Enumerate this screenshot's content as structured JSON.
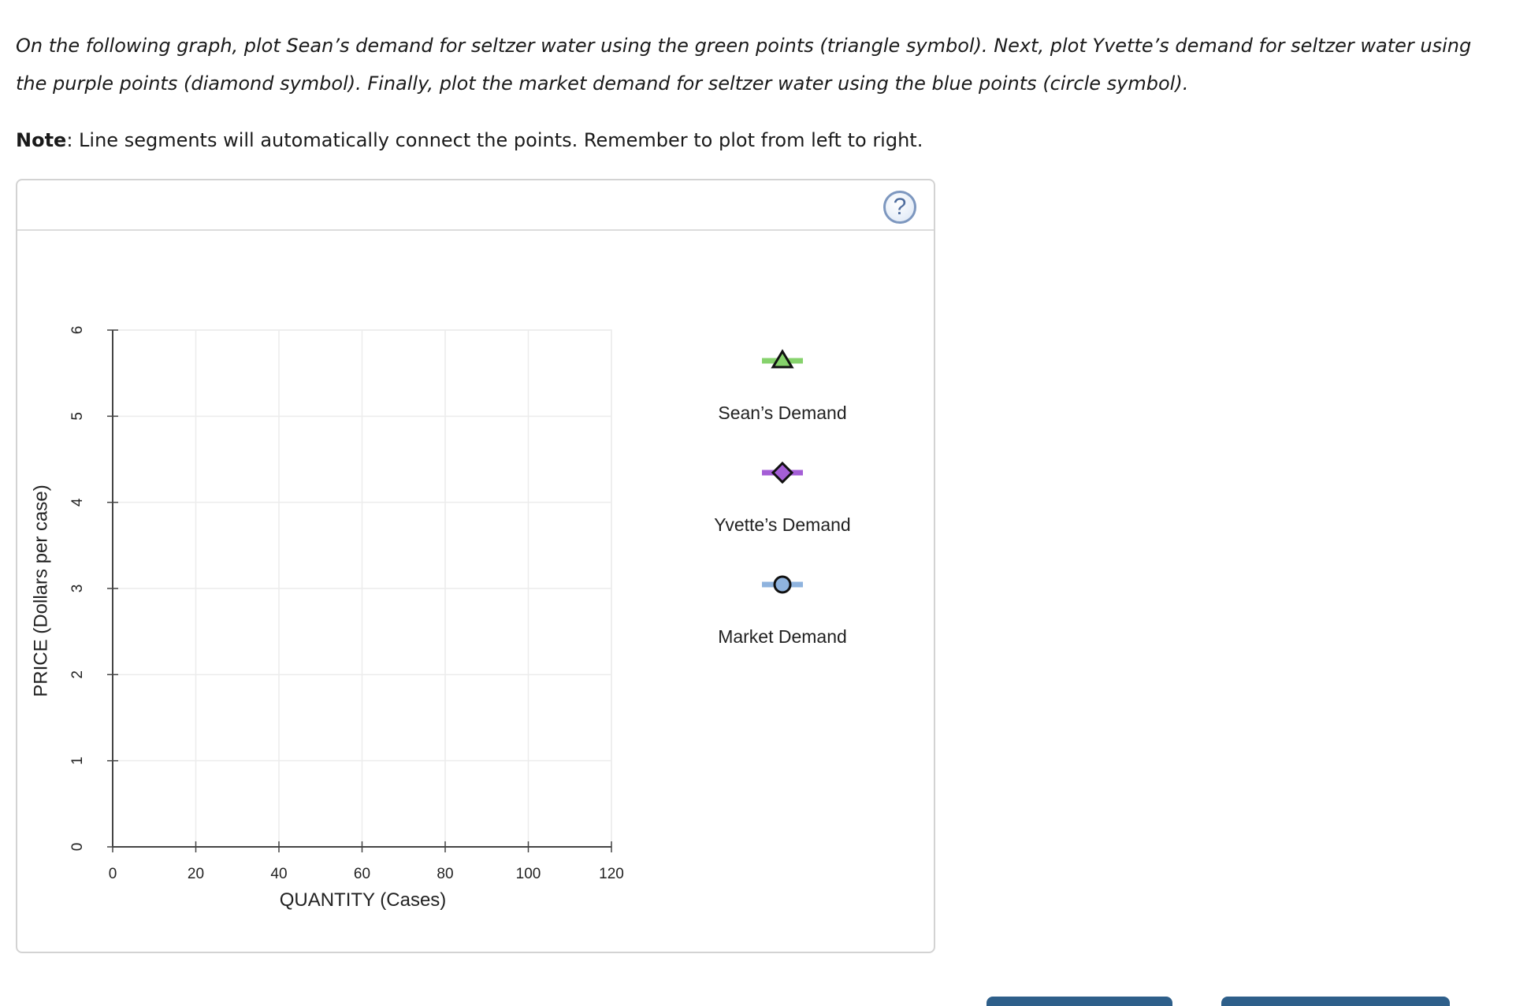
{
  "instructions": "On the following graph, plot Sean’s demand for seltzer water using the green points (triangle symbol). Next, plot Yvette’s demand for seltzer water using the purple points (diamond symbol). Finally, plot the market demand for seltzer water using the blue points (circle symbol).",
  "note": {
    "label": "Note",
    "text": ": Line segments will automatically connect the points. Remember to plot from left to right."
  },
  "help": {
    "glyph": "?"
  },
  "chart_data": {
    "type": "line",
    "xlabel": "QUANTITY (Cases)",
    "ylabel": "PRICE (Dollars per case)",
    "xlim": [
      0,
      120
    ],
    "ylim": [
      0,
      6
    ],
    "x_ticks": [
      0,
      20,
      40,
      60,
      80,
      100,
      120
    ],
    "y_ticks": [
      0,
      1,
      2,
      3,
      4,
      5,
      6
    ],
    "grid": true,
    "series": [
      {
        "name": "Sean’s Demand",
        "symbol": "triangle",
        "color": "#86d26c",
        "points": []
      },
      {
        "name": "Yvette’s Demand",
        "symbol": "diamond",
        "color": "#a45ed6",
        "points": []
      },
      {
        "name": "Market Demand",
        "symbol": "circle",
        "color": "#8fb3de",
        "points": []
      }
    ],
    "legend_placement": "right"
  }
}
